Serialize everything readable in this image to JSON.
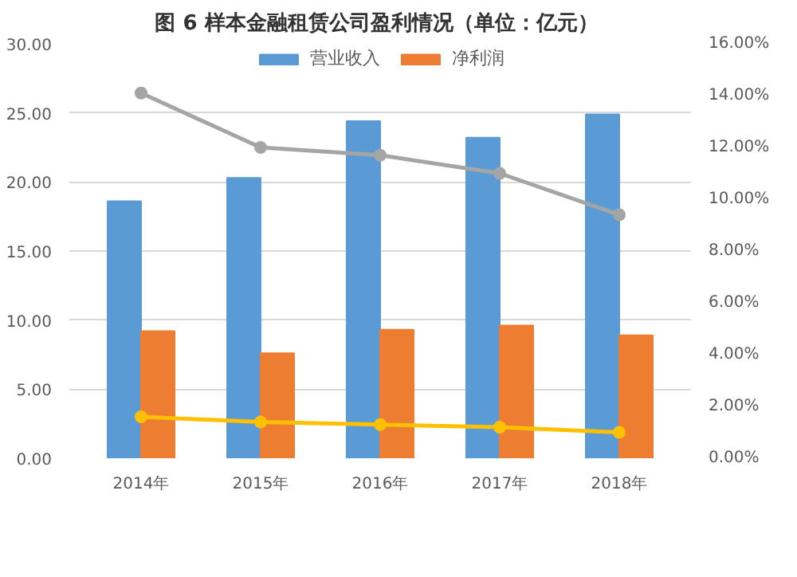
{
  "chart_data": {
    "type": "bar",
    "title": "图 6  样本金融租赁公司盈利情况（单位：亿元）",
    "categories": [
      "2014年",
      "2015年",
      "2016年",
      "2017年",
      "2018年"
    ],
    "series": [
      {
        "name": "营业收入",
        "color": "#5b9bd5",
        "values": [
          18.6,
          20.3,
          24.4,
          23.2,
          24.9
        ]
      },
      {
        "name": "净利润",
        "color": "#ed7d31",
        "values": [
          9.2,
          7.6,
          9.3,
          9.6,
          8.9
        ]
      },
      {
        "type": "line",
        "axis": "y2",
        "color": "#a5a5a5",
        "values": [
          14.1,
          12.0,
          11.7,
          11.0,
          9.4
        ]
      },
      {
        "type": "line",
        "axis": "y2",
        "color": "#ffc000",
        "values": [
          1.6,
          1.4,
          1.3,
          1.2,
          1.0
        ]
      }
    ],
    "ylim": [
      0,
      30
    ],
    "yticks": [
      {
        "value": 0,
        "label": "0.00"
      },
      {
        "value": 5,
        "label": "5.00"
      },
      {
        "value": 10,
        "label": "10.00"
      },
      {
        "value": 15,
        "label": "15.00"
      },
      {
        "value": 20,
        "label": "20.00"
      },
      {
        "value": 25,
        "label": "25.00"
      },
      {
        "value": 30,
        "label": "30.00"
      }
    ],
    "y2lim": [
      0,
      16
    ],
    "y2ticks": [
      {
        "value": 0,
        "label": "0.00%"
      },
      {
        "value": 2,
        "label": "2.00%"
      },
      {
        "value": 4,
        "label": "4.00%"
      },
      {
        "value": 6,
        "label": "6.00%"
      },
      {
        "value": 8,
        "label": "8.00%"
      },
      {
        "value": 10,
        "label": "10.00%"
      },
      {
        "value": 12,
        "label": "12.00%"
      },
      {
        "value": 14,
        "label": "14.00%"
      },
      {
        "value": 16,
        "label": "16.00%"
      }
    ],
    "grid": "y",
    "legend": "top",
    "marker": "circle"
  }
}
